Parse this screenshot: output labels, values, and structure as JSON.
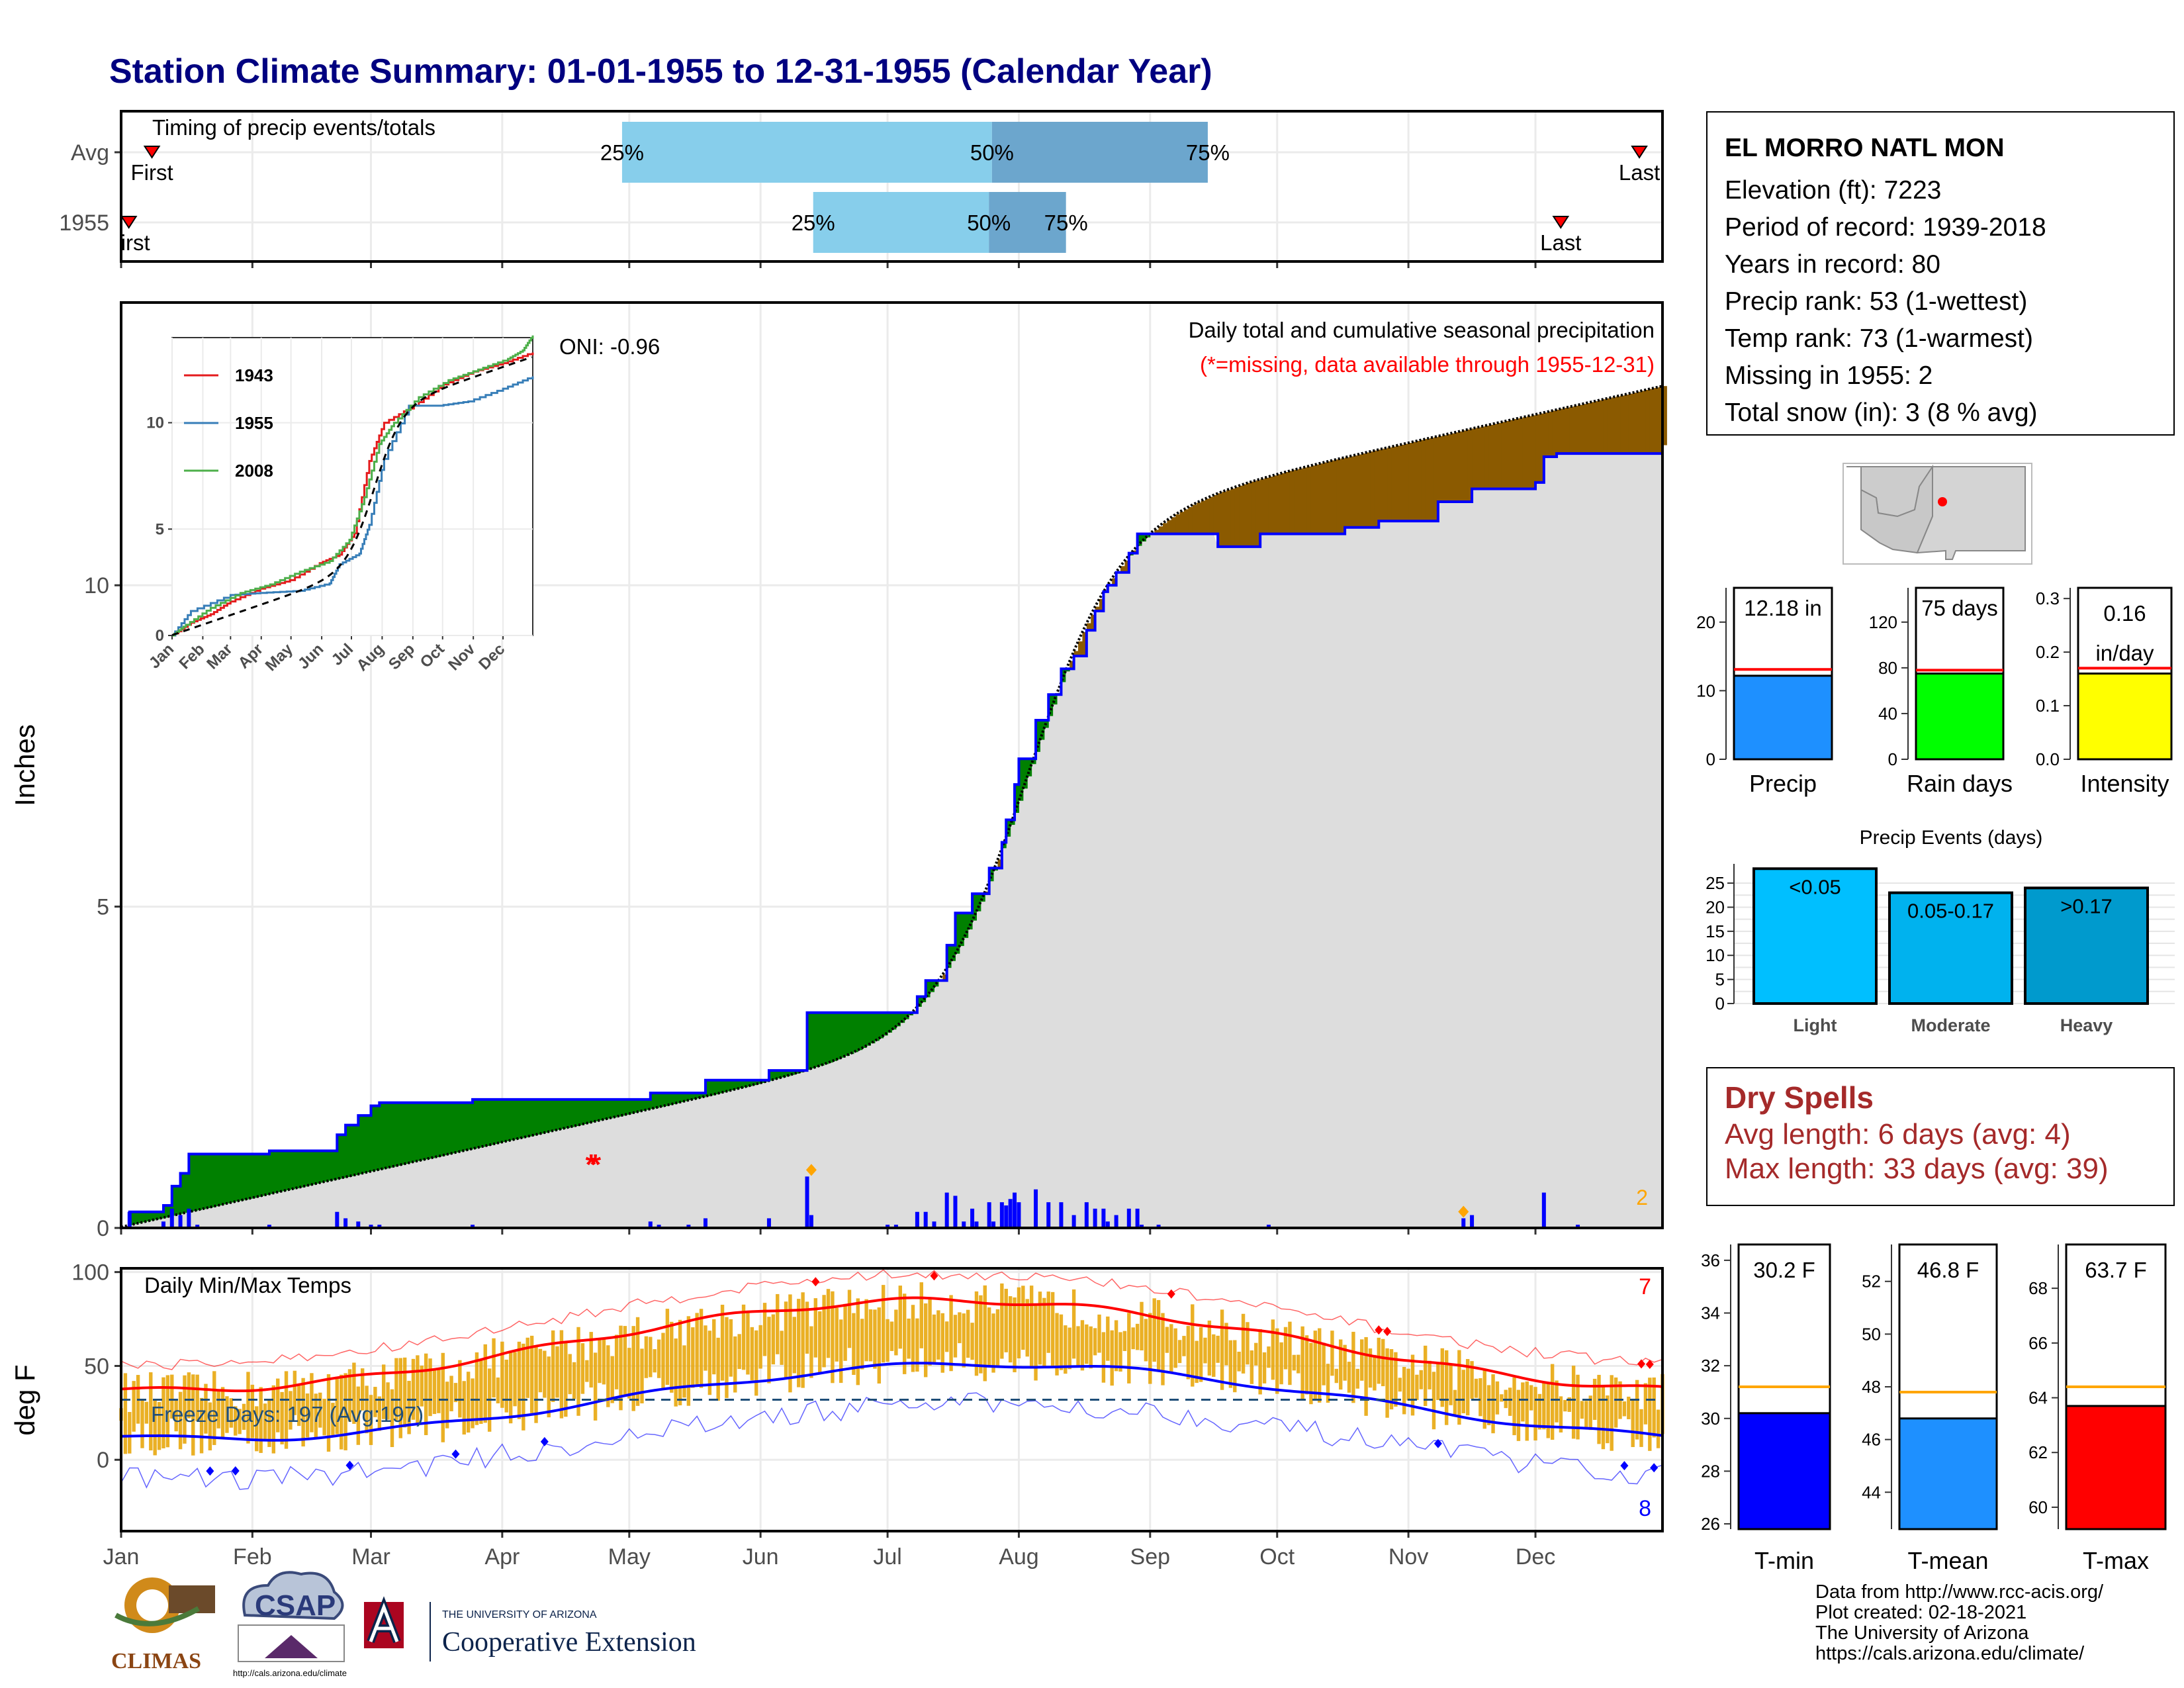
{
  "title": "Station Climate Summary: 01-01-1955 to 12-31-1955 (Calendar Year)",
  "timing_panel": {
    "title": "Timing of precip events/totals",
    "rows": [
      {
        "label": "Avg",
        "first_label": "First",
        "last_label": "Last",
        "first": 0.02,
        "q25": 0.325,
        "q50": 0.565,
        "q75": 0.705,
        "last": 0.985
      },
      {
        "label": "1955",
        "first_label": "First",
        "last_label": "Last",
        "first": 0.005,
        "q25": 0.449,
        "q50": 0.563,
        "q75": 0.613,
        "last": 0.934
      }
    ],
    "pct_labels": [
      "25%",
      "50%",
      "75%"
    ],
    "colors": {
      "light": "#87CEEB",
      "dark": "#6CA6CD",
      "marker": "#FF0000"
    }
  },
  "precip_panel": {
    "title": "Daily total and cumulative seasonal precipitation",
    "subtitle": "(*=missing, data available through 1955-12-31)",
    "ylabel": "Inches",
    "oni_label": "ONI: -0.96",
    "y_ticks": [
      "0",
      "5",
      "10"
    ],
    "missing_count": "2",
    "ylim": [
      0,
      14.4
    ],
    "avg_cumulative_total": 13.1,
    "colors": {
      "above": "#008000",
      "below": "#8B5A00",
      "obs_line": "#0000FF",
      "area": "#DDDDDD",
      "bars": "#0000FF",
      "missing": "#FF0000",
      "snow": "#FFA500"
    }
  },
  "chart_data": [
    {
      "type": "area",
      "title": "Daily total and cumulative seasonal precipitation",
      "ylabel": "Inches",
      "ylim": [
        0,
        14.4
      ],
      "xlim_days": [
        1,
        365
      ],
      "observed_cumulative_steps": [
        [
          1,
          0
        ],
        [
          3,
          0.25
        ],
        [
          11,
          0.35
        ],
        [
          13,
          0.65
        ],
        [
          15,
          0.85
        ],
        [
          17,
          1.15
        ],
        [
          36,
          1.2
        ],
        [
          52,
          1.45
        ],
        [
          54,
          1.6
        ],
        [
          57,
          1.75
        ],
        [
          60,
          1.9
        ],
        [
          62,
          1.95
        ],
        [
          84,
          2.0
        ],
        [
          126,
          2.1
        ],
        [
          139,
          2.3
        ],
        [
          154,
          2.45
        ],
        [
          163,
          3.35
        ],
        [
          189,
          3.6
        ],
        [
          191,
          3.85
        ],
        [
          196,
          4.4
        ],
        [
          198,
          4.9
        ],
        [
          202,
          5.2
        ],
        [
          206,
          5.6
        ],
        [
          209,
          6.0
        ],
        [
          210,
          6.35
        ],
        [
          212,
          6.9
        ],
        [
          213,
          7.3
        ],
        [
          217,
          7.9
        ],
        [
          220,
          8.3
        ],
        [
          223,
          8.7
        ],
        [
          226,
          8.9
        ],
        [
          229,
          9.3
        ],
        [
          231,
          9.6
        ],
        [
          233,
          9.9
        ],
        [
          234,
          10.0
        ],
        [
          236,
          10.2
        ],
        [
          239,
          10.5
        ],
        [
          241,
          10.8
        ],
        [
          246,
          10.8
        ],
        [
          260,
          10.6
        ],
        [
          270,
          10.8
        ],
        [
          275,
          10.8
        ],
        [
          290,
          10.9
        ],
        [
          298,
          11.0
        ],
        [
          310,
          11.0
        ],
        [
          312,
          11.3
        ],
        [
          320,
          11.5
        ],
        [
          335,
          11.6
        ],
        [
          337,
          12.0
        ],
        [
          340,
          12.05
        ],
        [
          365,
          12.18
        ]
      ],
      "average_cumulative_total": 13.1,
      "missing_days": [
        112,
        113
      ],
      "snow_days": [
        164,
        318
      ],
      "daily_bars": [
        [
          3,
          0.25
        ],
        [
          11,
          0.1
        ],
        [
          13,
          0.3
        ],
        [
          15,
          0.2
        ],
        [
          17,
          0.3
        ],
        [
          19,
          0.05
        ],
        [
          36,
          0.05
        ],
        [
          52,
          0.25
        ],
        [
          54,
          0.15
        ],
        [
          57,
          0.1
        ],
        [
          60,
          0.05
        ],
        [
          62,
          0.05
        ],
        [
          84,
          0.05
        ],
        [
          126,
          0.1
        ],
        [
          128,
          0.05
        ],
        [
          135,
          0.05
        ],
        [
          139,
          0.15
        ],
        [
          154,
          0.15
        ],
        [
          163,
          0.8
        ],
        [
          164,
          0.2
        ],
        [
          182,
          0.05
        ],
        [
          184,
          0.05
        ],
        [
          189,
          0.25
        ],
        [
          191,
          0.25
        ],
        [
          193,
          0.1
        ],
        [
          196,
          0.55
        ],
        [
          198,
          0.5
        ],
        [
          200,
          0.1
        ],
        [
          202,
          0.3
        ],
        [
          203,
          0.1
        ],
        [
          206,
          0.4
        ],
        [
          207,
          0.1
        ],
        [
          209,
          0.4
        ],
        [
          210,
          0.35
        ],
        [
          211,
          0.45
        ],
        [
          212,
          0.55
        ],
        [
          213,
          0.4
        ],
        [
          217,
          0.6
        ],
        [
          220,
          0.4
        ],
        [
          223,
          0.4
        ],
        [
          226,
          0.2
        ],
        [
          229,
          0.4
        ],
        [
          231,
          0.3
        ],
        [
          233,
          0.3
        ],
        [
          234,
          0.1
        ],
        [
          236,
          0.2
        ],
        [
          239,
          0.3
        ],
        [
          241,
          0.3
        ],
        [
          242,
          0.05
        ],
        [
          246,
          0.05
        ],
        [
          272,
          0.05
        ],
        [
          318,
          0.15
        ],
        [
          320,
          0.2
        ],
        [
          337,
          0.55
        ],
        [
          345,
          0.05
        ]
      ]
    },
    {
      "type": "line",
      "title": "Daily Min/Max Temps",
      "ylabel": "deg F",
      "ylim": [
        -38,
        102
      ],
      "y_ticks": [
        0,
        50,
        100
      ],
      "freeze_line": 32,
      "freeze_label": "Freeze Days: 197 (Avg:197)",
      "record_high_count": "7",
      "record_low_count": "8",
      "avg_max_model": {
        "mean": 61,
        "amplitude": 24,
        "peak_day": 195
      },
      "avg_min_model": {
        "mean": 31,
        "amplitude": 20,
        "peak_day": 205
      },
      "record_max_offset": 14,
      "record_min_offset": -21
    },
    {
      "type": "line",
      "title": "Cumulative precipitation comparison",
      "ylim": [
        0,
        14
      ],
      "y_ticks": [
        0,
        5,
        10
      ],
      "series": [
        {
          "name": "1943",
          "color": "#E41A1C",
          "points": [
            [
              1,
              0
            ],
            [
              20,
              0.6
            ],
            [
              40,
              1.0
            ],
            [
              60,
              1.6
            ],
            [
              90,
              2.2
            ],
            [
              120,
              2.6
            ],
            [
              150,
              3.4
            ],
            [
              170,
              3.8
            ],
            [
              185,
              4.8
            ],
            [
              200,
              8.2
            ],
            [
              215,
              10.0
            ],
            [
              245,
              10.8
            ],
            [
              275,
              11.8
            ],
            [
              305,
              12.4
            ],
            [
              335,
              12.8
            ],
            [
              365,
              13.3
            ]
          ]
        },
        {
          "name": "1955",
          "color": "#377EB8",
          "points": [
            [
              1,
              0
            ],
            [
              20,
              1.15
            ],
            [
              60,
              1.9
            ],
            [
              90,
              2.0
            ],
            [
              130,
              2.1
            ],
            [
              160,
              2.45
            ],
            [
              170,
              3.35
            ],
            [
              190,
              3.85
            ],
            [
              200,
              5.2
            ],
            [
              215,
              8.3
            ],
            [
              240,
              10.8
            ],
            [
              270,
              10.8
            ],
            [
              300,
              11.0
            ],
            [
              335,
              11.6
            ],
            [
              365,
              12.18
            ]
          ]
        },
        {
          "name": "2008",
          "color": "#4DAF4A",
          "points": [
            [
              1,
              0
            ],
            [
              15,
              0.5
            ],
            [
              40,
              1.3
            ],
            [
              70,
              2.0
            ],
            [
              100,
              2.4
            ],
            [
              130,
              3.0
            ],
            [
              160,
              3.5
            ],
            [
              180,
              4.5
            ],
            [
              195,
              6.5
            ],
            [
              210,
              9.0
            ],
            [
              225,
              10.0
            ],
            [
              250,
              11.2
            ],
            [
              280,
              12.0
            ],
            [
              310,
              12.5
            ],
            [
              340,
              13.0
            ],
            [
              355,
              13.4
            ],
            [
              365,
              14.1
            ]
          ]
        }
      ],
      "average": {
        "name": "Avg",
        "color": "#000000",
        "dash": true
      }
    },
    {
      "type": "bar",
      "title": "Precip",
      "categories": [
        "Precip"
      ],
      "values": [
        12.18
      ],
      "value_label": "12.18 in",
      "avg": 13.1,
      "ylim": [
        0,
        25
      ],
      "y_ticks": [
        0,
        10,
        20
      ],
      "color": "#1E90FF"
    },
    {
      "type": "bar",
      "title": "Rain days",
      "categories": [
        "Rain days"
      ],
      "values": [
        75
      ],
      "value_label": "75 days",
      "avg": 78,
      "ylim": [
        0,
        150
      ],
      "y_ticks": [
        0,
        40,
        80,
        120
      ],
      "color": "#00FF00"
    },
    {
      "type": "bar",
      "title": "Intensity",
      "categories": [
        "Intensity"
      ],
      "values": [
        0.16
      ],
      "value_label_lines": [
        "0.16",
        "in/day"
      ],
      "avg": 0.17,
      "ylim": [
        0,
        0.32
      ],
      "y_ticks": [
        "0.0",
        "0.1",
        "0.2",
        "0.3"
      ],
      "color": "#FFFF00"
    },
    {
      "type": "bar",
      "title": "Precip Events (days)",
      "categories": [
        "Light",
        "Moderate",
        "Heavy"
      ],
      "values": [
        28,
        23,
        24
      ],
      "bar_labels": [
        "<0.05",
        "0.05-0.17",
        ">0.17"
      ],
      "ylim": [
        0,
        29
      ],
      "y_ticks": [
        0,
        5,
        10,
        15,
        20,
        25
      ],
      "colors": [
        "#00BFFF",
        "#00B2EE",
        "#009ACD"
      ]
    },
    {
      "type": "bar",
      "title": "T-min",
      "categories": [
        "T-min"
      ],
      "values": [
        30.2
      ],
      "value_label": "30.2 F",
      "avg": 31.2,
      "ylim": [
        25.8,
        36.6
      ],
      "y_ticks": [
        26,
        28,
        30,
        32,
        34,
        36
      ],
      "color": "#0000FF"
    },
    {
      "type": "bar",
      "title": "T-mean",
      "categories": [
        "T-mean"
      ],
      "values": [
        46.8
      ],
      "value_label": "46.8 F",
      "avg": 47.8,
      "ylim": [
        42.6,
        53.4
      ],
      "y_ticks": [
        44,
        46,
        48,
        50,
        52
      ],
      "color": "#1E90FF"
    },
    {
      "type": "bar",
      "title": "T-max",
      "categories": [
        "T-max"
      ],
      "values": [
        63.7
      ],
      "value_label": "63.7 F",
      "avg": 64.4,
      "ylim": [
        59.2,
        69.6
      ],
      "y_ticks": [
        60,
        62,
        64,
        66,
        68
      ],
      "color": "#FF0000"
    }
  ],
  "months": [
    "Jan",
    "Feb",
    "Mar",
    "Apr",
    "May",
    "Jun",
    "Jul",
    "Aug",
    "Sep",
    "Oct",
    "Nov",
    "Dec"
  ],
  "station_info": {
    "name": "EL MORRO NATL MON",
    "lines": [
      "Elevation (ft): 7223",
      "Period of record: 1939-2018",
      "Years in record: 80",
      "Precip rank: 53 (1-wettest)",
      "Temp rank: 73 (1-warmest)",
      "Missing in 1955: 2",
      "Total snow (in): 3 (8 % avg)"
    ]
  },
  "dry_spells": {
    "title": "Dry Spells",
    "avg_line": "Avg length: 6 days (avg: 4)",
    "max_line": "Max length: 33 days (avg: 39)"
  },
  "credits": [
    "Data from http://www.rcc-acis.org/",
    "Plot created: 02-18-2021",
    "The University of Arizona",
    "https://cals.arizona.edu/climate/"
  ],
  "logos": {
    "climas": "CLIMAS",
    "csap": "CSAP",
    "csap_url": "http://cals.arizona.edu/climate",
    "ua_small": "THE UNIVERSITY OF ARIZONA",
    "ua_big": "Cooperative Extension"
  }
}
